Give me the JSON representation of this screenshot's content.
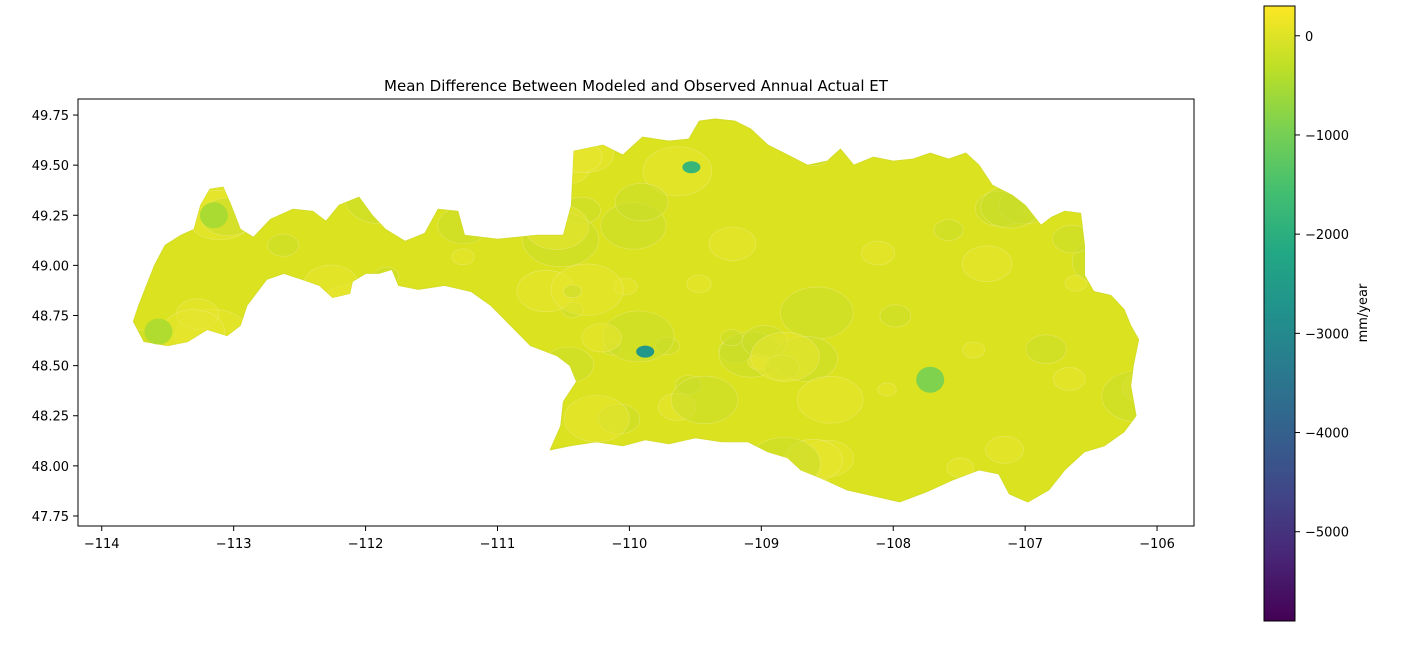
{
  "chart_data": {
    "type": "choropleth",
    "title": "Mean Difference Between Modeled and Observed Annual Actual ET",
    "xlim": [
      -114.18,
      -105.72
    ],
    "ylim": [
      47.7,
      49.83
    ],
    "xticks": [
      -114,
      -113,
      -112,
      -111,
      -110,
      -109,
      -108,
      -107,
      -106
    ],
    "xtick_labels": [
      "−114",
      "−113",
      "−112",
      "−111",
      "−110",
      "−109",
      "−108",
      "−107",
      "−106"
    ],
    "yticks": [
      47.75,
      48.0,
      48.25,
      48.5,
      48.75,
      49.0,
      49.25,
      49.5,
      49.75
    ],
    "ytick_labels": [
      "47.75",
      "48.00",
      "48.25",
      "48.50",
      "48.75",
      "49.00",
      "49.25",
      "49.50",
      "49.75"
    ],
    "grid": false,
    "region_outline": [
      [
        -113.72,
        48.8
      ],
      [
        -113.66,
        48.9
      ],
      [
        -113.6,
        49.0
      ],
      [
        -113.52,
        49.1
      ],
      [
        -113.4,
        49.15
      ],
      [
        -113.3,
        49.18
      ],
      [
        -113.25,
        49.3
      ],
      [
        -113.18,
        49.38
      ],
      [
        -113.08,
        49.39
      ],
      [
        -113.02,
        49.3
      ],
      [
        -112.95,
        49.18
      ],
      [
        -112.85,
        49.14
      ],
      [
        -112.72,
        49.23
      ],
      [
        -112.55,
        49.28
      ],
      [
        -112.4,
        49.27
      ],
      [
        -112.3,
        49.22
      ],
      [
        -112.2,
        49.3
      ],
      [
        -112.05,
        49.34
      ],
      [
        -111.95,
        49.25
      ],
      [
        -111.85,
        49.18
      ],
      [
        -111.7,
        49.12
      ],
      [
        -111.55,
        49.16
      ],
      [
        -111.45,
        49.28
      ],
      [
        -111.3,
        49.27
      ],
      [
        -111.25,
        49.15
      ],
      [
        -111.0,
        49.13
      ],
      [
        -110.7,
        49.15
      ],
      [
        -110.5,
        49.15
      ],
      [
        -110.44,
        49.3
      ],
      [
        -110.42,
        49.57
      ],
      [
        -110.2,
        49.6
      ],
      [
        -110.05,
        49.55
      ],
      [
        -109.9,
        49.64
      ],
      [
        -109.7,
        49.62
      ],
      [
        -109.55,
        49.63
      ],
      [
        -109.47,
        49.72
      ],
      [
        -109.35,
        49.73
      ],
      [
        -109.2,
        49.72
      ],
      [
        -109.08,
        49.68
      ],
      [
        -108.95,
        49.6
      ],
      [
        -108.8,
        49.55
      ],
      [
        -108.65,
        49.5
      ],
      [
        -108.5,
        49.52
      ],
      [
        -108.4,
        49.58
      ],
      [
        -108.3,
        49.5
      ],
      [
        -108.15,
        49.54
      ],
      [
        -108.0,
        49.52
      ],
      [
        -107.85,
        49.53
      ],
      [
        -107.72,
        49.56
      ],
      [
        -107.58,
        49.53
      ],
      [
        -107.45,
        49.56
      ],
      [
        -107.35,
        49.5
      ],
      [
        -107.25,
        49.4
      ],
      [
        -107.1,
        49.35
      ],
      [
        -107.0,
        49.3
      ],
      [
        -106.88,
        49.2
      ],
      [
        -106.8,
        49.24
      ],
      [
        -106.7,
        49.27
      ],
      [
        -106.58,
        49.26
      ],
      [
        -106.55,
        49.1
      ],
      [
        -106.55,
        48.95
      ],
      [
        -106.48,
        48.87
      ],
      [
        -106.35,
        48.85
      ],
      [
        -106.25,
        48.78
      ],
      [
        -106.2,
        48.7
      ],
      [
        -106.14,
        48.63
      ],
      [
        -106.18,
        48.5
      ],
      [
        -106.2,
        48.4
      ],
      [
        -106.16,
        48.25
      ],
      [
        -106.25,
        48.17
      ],
      [
        -106.4,
        48.1
      ],
      [
        -106.55,
        48.07
      ],
      [
        -106.7,
        47.98
      ],
      [
        -106.82,
        47.88
      ],
      [
        -106.98,
        47.82
      ],
      [
        -107.12,
        47.86
      ],
      [
        -107.2,
        47.96
      ],
      [
        -107.35,
        47.98
      ],
      [
        -107.55,
        47.93
      ],
      [
        -107.75,
        47.87
      ],
      [
        -107.95,
        47.82
      ],
      [
        -108.15,
        47.85
      ],
      [
        -108.35,
        47.88
      ],
      [
        -108.55,
        47.94
      ],
      [
        -108.7,
        47.98
      ],
      [
        -108.8,
        48.04
      ],
      [
        -108.95,
        48.07
      ],
      [
        -109.1,
        48.12
      ],
      [
        -109.3,
        48.12
      ],
      [
        -109.5,
        48.14
      ],
      [
        -109.7,
        48.11
      ],
      [
        -109.88,
        48.13
      ],
      [
        -110.05,
        48.1
      ],
      [
        -110.25,
        48.12
      ],
      [
        -110.45,
        48.1
      ],
      [
        -110.6,
        48.08
      ],
      [
        -110.52,
        48.2
      ],
      [
        -110.5,
        48.32
      ],
      [
        -110.4,
        48.42
      ],
      [
        -110.45,
        48.5
      ],
      [
        -110.55,
        48.55
      ],
      [
        -110.75,
        48.6
      ],
      [
        -110.9,
        48.7
      ],
      [
        -111.05,
        48.8
      ],
      [
        -111.2,
        48.87
      ],
      [
        -111.4,
        48.9
      ],
      [
        -111.6,
        48.88
      ],
      [
        -111.75,
        48.9
      ],
      [
        -111.8,
        48.98
      ],
      [
        -111.9,
        48.96
      ],
      [
        -112.0,
        48.96
      ],
      [
        -112.1,
        48.92
      ],
      [
        -112.12,
        48.86
      ],
      [
        -112.25,
        48.84
      ],
      [
        -112.35,
        48.9
      ],
      [
        -112.48,
        48.93
      ],
      [
        -112.62,
        48.96
      ],
      [
        -112.75,
        48.93
      ],
      [
        -112.9,
        48.8
      ],
      [
        -112.95,
        48.7
      ],
      [
        -113.05,
        48.65
      ],
      [
        -113.2,
        48.68
      ],
      [
        -113.35,
        48.62
      ],
      [
        -113.5,
        48.6
      ],
      [
        -113.68,
        48.62
      ],
      [
        -113.76,
        48.72
      ]
    ],
    "hotspots": [
      {
        "lon": -109.53,
        "lat": 49.49,
        "value": -1800
      },
      {
        "lon": -109.88,
        "lat": 48.57,
        "value": -2600
      },
      {
        "lon": -107.72,
        "lat": 48.43,
        "value": -900
      },
      {
        "lon": -113.15,
        "lat": 49.25,
        "value": -500
      },
      {
        "lon": -113.57,
        "lat": 48.67,
        "value": -450
      }
    ],
    "colorbar": {
      "label": "mm/year",
      "vmin": -5900,
      "vmax": 300,
      "ticks": [
        0,
        -1000,
        -2000,
        -3000,
        -4000,
        -5000
      ],
      "tick_labels": [
        "0",
        "−1000",
        "−2000",
        "−3000",
        "−4000",
        "−5000"
      ],
      "colormap": "viridis"
    }
  },
  "colors": {
    "region_fill": "#dbe21f",
    "text": "#000000"
  }
}
